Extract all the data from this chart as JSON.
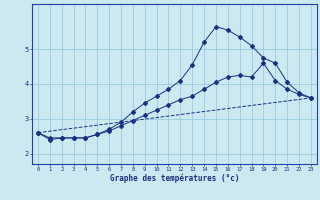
{
  "xlabel": "Graphe des températures (°c)",
  "bg_color": "#cce8f0",
  "grid_color": "#99cce0",
  "line_color": "#1a3080",
  "axis_color": "#2244aa",
  "xlim": [
    -0.5,
    23.5
  ],
  "ylim": [
    1.7,
    6.3
  ],
  "yticks": [
    2,
    3,
    4,
    5
  ],
  "xticks": [
    0,
    1,
    2,
    3,
    4,
    5,
    6,
    7,
    8,
    9,
    10,
    11,
    12,
    13,
    14,
    15,
    16,
    17,
    18,
    19,
    20,
    21,
    22,
    23
  ],
  "line1_x": [
    0,
    1,
    2,
    3,
    4,
    5,
    6,
    7,
    8,
    9,
    10,
    11,
    12,
    13,
    14,
    15,
    16,
    17,
    18,
    19,
    20,
    21,
    22,
    23
  ],
  "line1_y": [
    2.6,
    2.4,
    2.45,
    2.45,
    2.45,
    2.55,
    2.7,
    2.9,
    3.2,
    3.45,
    3.65,
    3.85,
    4.1,
    4.55,
    5.2,
    5.65,
    5.55,
    5.35,
    5.1,
    4.75,
    4.6,
    4.05,
    3.75,
    3.6
  ],
  "line2_x": [
    0,
    1,
    2,
    3,
    4,
    5,
    6,
    7,
    8,
    9,
    10,
    11,
    12,
    13,
    14,
    15,
    16,
    17,
    18,
    19,
    20,
    21,
    22,
    23
  ],
  "line2_y": [
    2.6,
    2.45,
    2.45,
    2.45,
    2.45,
    2.55,
    2.65,
    2.8,
    2.95,
    3.1,
    3.25,
    3.4,
    3.55,
    3.65,
    3.85,
    4.05,
    4.2,
    4.25,
    4.2,
    4.6,
    4.1,
    3.85,
    3.7,
    3.6
  ],
  "line3_x": [
    0,
    23
  ],
  "line3_y": [
    2.6,
    3.6
  ]
}
